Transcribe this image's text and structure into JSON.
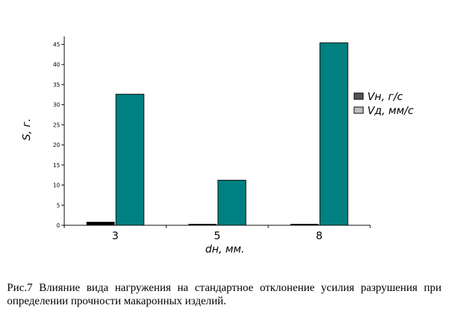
{
  "chart_data": {
    "type": "bar",
    "xlabel": "dн, мм.",
    "ylabel": "S, г.",
    "ylim": [
      0,
      47
    ],
    "yticks": [
      0,
      5,
      10,
      15,
      20,
      25,
      30,
      35,
      40,
      45
    ],
    "categories": [
      "3",
      "5",
      "8"
    ],
    "series": [
      {
        "name": "Vн, г/с",
        "color": "#000000",
        "values": [
          0.8,
          0.3,
          0.3
        ]
      },
      {
        "name": "Vд, мм/с",
        "color": "#008080",
        "values": [
          32.6,
          11.2,
          45.4
        ]
      }
    ],
    "legend_position": "right",
    "legend_swatch_colors": [
      "#555555",
      "#c0c0c0"
    ],
    "grid": false
  },
  "caption": "Рис.7 Влияние вида нагружения на стандартное отклонение усилия разрушения при определении прочности макаронных изделий."
}
